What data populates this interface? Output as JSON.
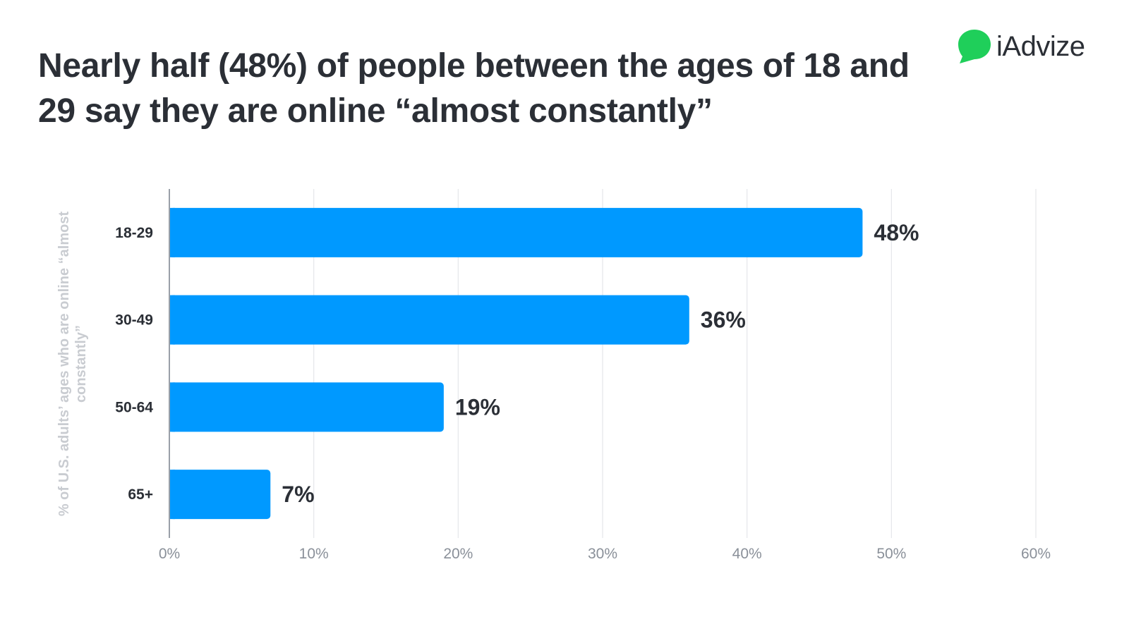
{
  "title": "Nearly half (48%) of people between the ages of 18 and 29 say they are online “almost constantly”",
  "logo": {
    "text": "iAdvize",
    "icon": "speech-bubble-icon",
    "color": "#1fcf5a"
  },
  "colors": {
    "bar": "#0099ff",
    "grid": "#e4e6ea",
    "axis": "#9aa0a8",
    "text_dark": "#2b2f36",
    "tick_text": "#8a9099"
  },
  "chart_data": {
    "type": "bar",
    "orientation": "horizontal",
    "title": "Nearly half (48%) of people between the ages of 18 and 29 say they are online “almost constantly”",
    "xlabel": "",
    "ylabel": "% of U.S. adults’ ages who are online “almost constantly”",
    "categories": [
      "18-29",
      "30-49",
      "50-64",
      "65+"
    ],
    "values": [
      48,
      36,
      19,
      7
    ],
    "data_labels": [
      "48%",
      "36%",
      "19%",
      "7%"
    ],
    "xlim": [
      0,
      60
    ],
    "xticks": [
      0,
      10,
      20,
      30,
      40,
      50,
      60
    ],
    "xtick_labels": [
      "0%",
      "10%",
      "20%",
      "30%",
      "40%",
      "50%",
      "60%"
    ],
    "grid": true,
    "legend": "none"
  }
}
